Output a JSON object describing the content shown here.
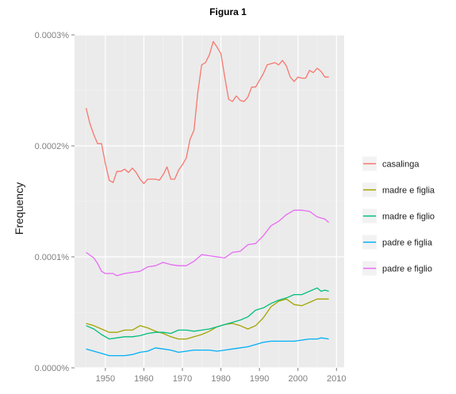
{
  "figure_title": "Figura 1",
  "chart_data": {
    "type": "line",
    "title": "",
    "xlabel": "",
    "ylabel": "Frequency",
    "xlim": [
      1942,
      2012
    ],
    "ylim": [
      0,
      3e-06
    ],
    "x_ticks": [
      1950,
      1960,
      1970,
      1980,
      1990,
      2000,
      2010
    ],
    "y_ticks": [
      {
        "value": 0,
        "label": "0.0000%"
      },
      {
        "value": 1e-06,
        "label": "0.0001%"
      },
      {
        "value": 2e-06,
        "label": "0.0002%"
      },
      {
        "value": 3e-06,
        "label": "0.0003%"
      }
    ],
    "grid": true,
    "legend_position": "right",
    "series": [
      {
        "name": "casalinga",
        "color": "#F8766D",
        "points": [
          [
            1945,
            2.34e-06
          ],
          [
            1946,
            2.2e-06
          ],
          [
            1947,
            2.1e-06
          ],
          [
            1948,
            2.02e-06
          ],
          [
            1949,
            2.02e-06
          ],
          [
            1950,
            1.84e-06
          ],
          [
            1951,
            1.69e-06
          ],
          [
            1952,
            1.67e-06
          ],
          [
            1953,
            1.77e-06
          ],
          [
            1954,
            1.77e-06
          ],
          [
            1955,
            1.79e-06
          ],
          [
            1956,
            1.76e-06
          ],
          [
            1957,
            1.8e-06
          ],
          [
            1958,
            1.76e-06
          ],
          [
            1959,
            1.7e-06
          ],
          [
            1960,
            1.66e-06
          ],
          [
            1961,
            1.7e-06
          ],
          [
            1962,
            1.7e-06
          ],
          [
            1963,
            1.7e-06
          ],
          [
            1964,
            1.69e-06
          ],
          [
            1965,
            1.74e-06
          ],
          [
            1966,
            1.81e-06
          ],
          [
            1967,
            1.7e-06
          ],
          [
            1968,
            1.7e-06
          ],
          [
            1969,
            1.78e-06
          ],
          [
            1970,
            1.83e-06
          ],
          [
            1971,
            1.89e-06
          ],
          [
            1972,
            2.06e-06
          ],
          [
            1973,
            2.14e-06
          ],
          [
            1974,
            2.48e-06
          ],
          [
            1975,
            2.73e-06
          ],
          [
            1976,
            2.75e-06
          ],
          [
            1977,
            2.82e-06
          ],
          [
            1978,
            2.94e-06
          ],
          [
            1979,
            2.89e-06
          ],
          [
            1980,
            2.83e-06
          ],
          [
            1981,
            2.62e-06
          ],
          [
            1982,
            2.42e-06
          ],
          [
            1983,
            2.4e-06
          ],
          [
            1984,
            2.45e-06
          ],
          [
            1985,
            2.41e-06
          ],
          [
            1986,
            2.4e-06
          ],
          [
            1987,
            2.44e-06
          ],
          [
            1988,
            2.53e-06
          ],
          [
            1989,
            2.53e-06
          ],
          [
            1990,
            2.59e-06
          ],
          [
            1991,
            2.65e-06
          ],
          [
            1992,
            2.73e-06
          ],
          [
            1993,
            2.74e-06
          ],
          [
            1994,
            2.75e-06
          ],
          [
            1995,
            2.73e-06
          ],
          [
            1996,
            2.77e-06
          ],
          [
            1997,
            2.72e-06
          ],
          [
            1998,
            2.62e-06
          ],
          [
            1999,
            2.58e-06
          ],
          [
            2000,
            2.62e-06
          ],
          [
            2001,
            2.61e-06
          ],
          [
            2002,
            2.61e-06
          ],
          [
            2003,
            2.68e-06
          ],
          [
            2004,
            2.66e-06
          ],
          [
            2005,
            2.7e-06
          ],
          [
            2006,
            2.67e-06
          ],
          [
            2007,
            2.62e-06
          ],
          [
            2008,
            2.62e-06
          ]
        ]
      },
      {
        "name": "madre e figlia",
        "color": "#A3A500",
        "points": [
          [
            1945,
            4e-07
          ],
          [
            1947,
            3.8e-07
          ],
          [
            1949,
            3.5e-07
          ],
          [
            1951,
            3.2e-07
          ],
          [
            1953,
            3.2e-07
          ],
          [
            1955,
            3.4e-07
          ],
          [
            1957,
            3.4e-07
          ],
          [
            1959,
            3.8e-07
          ],
          [
            1961,
            3.6e-07
          ],
          [
            1963,
            3.3e-07
          ],
          [
            1965,
            3.1e-07
          ],
          [
            1967,
            2.8e-07
          ],
          [
            1969,
            2.6e-07
          ],
          [
            1971,
            2.6e-07
          ],
          [
            1973,
            2.8e-07
          ],
          [
            1975,
            3e-07
          ],
          [
            1977,
            3.3e-07
          ],
          [
            1979,
            3.7e-07
          ],
          [
            1981,
            3.9e-07
          ],
          [
            1983,
            4e-07
          ],
          [
            1985,
            3.8e-07
          ],
          [
            1987,
            3.5e-07
          ],
          [
            1989,
            3.8e-07
          ],
          [
            1991,
            4.5e-07
          ],
          [
            1993,
            5.5e-07
          ],
          [
            1995,
            6e-07
          ],
          [
            1997,
            6.2e-07
          ],
          [
            1999,
            5.7e-07
          ],
          [
            2001,
            5.6e-07
          ],
          [
            2003,
            5.9e-07
          ],
          [
            2005,
            6.2e-07
          ],
          [
            2007,
            6.2e-07
          ],
          [
            2008,
            6.2e-07
          ]
        ]
      },
      {
        "name": "madre e figlio",
        "color": "#00BF7D",
        "points": [
          [
            1945,
            3.8e-07
          ],
          [
            1947,
            3.5e-07
          ],
          [
            1949,
            3e-07
          ],
          [
            1951,
            2.6e-07
          ],
          [
            1953,
            2.7e-07
          ],
          [
            1955,
            2.8e-07
          ],
          [
            1957,
            2.8e-07
          ],
          [
            1959,
            2.9e-07
          ],
          [
            1961,
            3.1e-07
          ],
          [
            1963,
            3.2e-07
          ],
          [
            1965,
            3.2e-07
          ],
          [
            1967,
            3.1e-07
          ],
          [
            1969,
            3.4e-07
          ],
          [
            1971,
            3.4e-07
          ],
          [
            1973,
            3.3e-07
          ],
          [
            1975,
            3.4e-07
          ],
          [
            1977,
            3.5e-07
          ],
          [
            1979,
            3.7e-07
          ],
          [
            1981,
            3.9e-07
          ],
          [
            1983,
            4.1e-07
          ],
          [
            1985,
            4.3e-07
          ],
          [
            1987,
            4.6e-07
          ],
          [
            1989,
            5.2e-07
          ],
          [
            1991,
            5.4e-07
          ],
          [
            1993,
            5.8e-07
          ],
          [
            1995,
            6.1e-07
          ],
          [
            1997,
            6.3e-07
          ],
          [
            1999,
            6.6e-07
          ],
          [
            2001,
            6.6e-07
          ],
          [
            2003,
            6.9e-07
          ],
          [
            2005,
            7.2e-07
          ],
          [
            2006,
            6.9e-07
          ],
          [
            2007,
            7e-07
          ],
          [
            2008,
            6.9e-07
          ]
        ]
      },
      {
        "name": "padre e figlia",
        "color": "#00B0F6",
        "points": [
          [
            1945,
            1.7e-07
          ],
          [
            1947,
            1.5e-07
          ],
          [
            1949,
            1.3e-07
          ],
          [
            1951,
            1.1e-07
          ],
          [
            1953,
            1.1e-07
          ],
          [
            1955,
            1.1e-07
          ],
          [
            1957,
            1.2e-07
          ],
          [
            1959,
            1.4e-07
          ],
          [
            1961,
            1.5e-07
          ],
          [
            1963,
            1.8e-07
          ],
          [
            1965,
            1.7e-07
          ],
          [
            1967,
            1.6e-07
          ],
          [
            1969,
            1.4e-07
          ],
          [
            1971,
            1.5e-07
          ],
          [
            1973,
            1.6e-07
          ],
          [
            1975,
            1.6e-07
          ],
          [
            1977,
            1.6e-07
          ],
          [
            1979,
            1.5e-07
          ],
          [
            1981,
            1.6e-07
          ],
          [
            1983,
            1.7e-07
          ],
          [
            1985,
            1.8e-07
          ],
          [
            1987,
            1.9e-07
          ],
          [
            1989,
            2.1e-07
          ],
          [
            1991,
            2.3e-07
          ],
          [
            1993,
            2.4e-07
          ],
          [
            1995,
            2.4e-07
          ],
          [
            1997,
            2.4e-07
          ],
          [
            1999,
            2.4e-07
          ],
          [
            2001,
            2.5e-07
          ],
          [
            2003,
            2.6e-07
          ],
          [
            2005,
            2.6e-07
          ],
          [
            2006,
            2.7e-07
          ],
          [
            2008,
            2.6e-07
          ]
        ]
      },
      {
        "name": "padre e figlio",
        "color": "#E76BF3",
        "points": [
          [
            1945,
            1.04e-06
          ],
          [
            1947,
            9.9e-07
          ],
          [
            1948,
            9.4e-07
          ],
          [
            1949,
            8.7e-07
          ],
          [
            1950,
            8.5e-07
          ],
          [
            1952,
            8.5e-07
          ],
          [
            1953,
            8.3e-07
          ],
          [
            1955,
            8.5e-07
          ],
          [
            1957,
            8.6e-07
          ],
          [
            1959,
            8.7e-07
          ],
          [
            1961,
            9.1e-07
          ],
          [
            1963,
            9.2e-07
          ],
          [
            1965,
            9.5e-07
          ],
          [
            1967,
            9.3e-07
          ],
          [
            1969,
            9.2e-07
          ],
          [
            1971,
            9.2e-07
          ],
          [
            1973,
            9.6e-07
          ],
          [
            1975,
            1.02e-06
          ],
          [
            1977,
            1.01e-06
          ],
          [
            1979,
            1e-06
          ],
          [
            1981,
            9.9e-07
          ],
          [
            1983,
            1.04e-06
          ],
          [
            1985,
            1.05e-06
          ],
          [
            1987,
            1.11e-06
          ],
          [
            1989,
            1.12e-06
          ],
          [
            1991,
            1.19e-06
          ],
          [
            1993,
            1.28e-06
          ],
          [
            1995,
            1.32e-06
          ],
          [
            1997,
            1.38e-06
          ],
          [
            1999,
            1.42e-06
          ],
          [
            2001,
            1.42e-06
          ],
          [
            2003,
            1.41e-06
          ],
          [
            2005,
            1.36e-06
          ],
          [
            2007,
            1.34e-06
          ],
          [
            2008,
            1.31e-06
          ]
        ]
      }
    ]
  }
}
